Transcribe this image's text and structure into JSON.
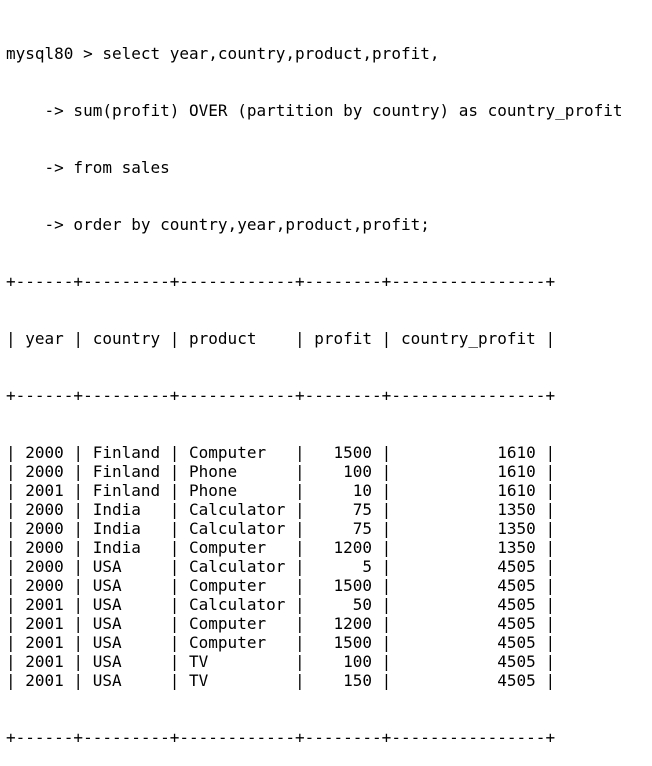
{
  "terminal": {
    "prompt": "mysql80 > ",
    "query_lines": [
      "select year,country,product,profit,",
      "    -> sum(profit) OVER (partition by country) as country_profit",
      "    -> from sales",
      "    -> order by country,year,product,profit;"
    ],
    "table_border": "+------+---------+------------+--------+----------------+",
    "columns": [
      "year",
      "country",
      "product",
      "profit",
      "country_profit"
    ],
    "rows": [
      [
        "2000",
        "Finland",
        "Computer",
        "1500",
        "1610"
      ],
      [
        "2000",
        "Finland",
        "Phone",
        "100",
        "1610"
      ],
      [
        "2001",
        "Finland",
        "Phone",
        "10",
        "1610"
      ],
      [
        "2000",
        "India",
        "Calculator",
        "75",
        "1350"
      ],
      [
        "2000",
        "India",
        "Calculator",
        "75",
        "1350"
      ],
      [
        "2000",
        "India",
        "Computer",
        "1200",
        "1350"
      ],
      [
        "2000",
        "USA",
        "Calculator",
        "5",
        "4505"
      ],
      [
        "2000",
        "USA",
        "Computer",
        "1500",
        "4505"
      ],
      [
        "2001",
        "USA",
        "Calculator",
        "50",
        "4505"
      ],
      [
        "2001",
        "USA",
        "Computer",
        "1200",
        "4505"
      ],
      [
        "2001",
        "USA",
        "Computer",
        "1500",
        "4505"
      ],
      [
        "2001",
        "USA",
        "TV",
        "100",
        "4505"
      ],
      [
        "2001",
        "USA",
        "TV",
        "150",
        "4505"
      ]
    ]
  }
}
